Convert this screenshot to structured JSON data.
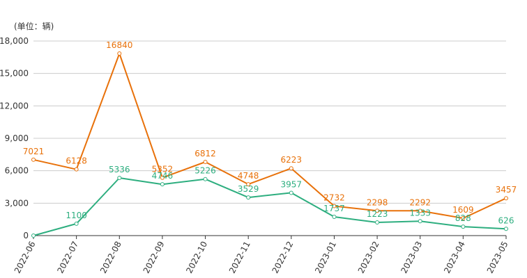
{
  "unit_label": "(单位：辆)",
  "chart_data": {
    "type": "line",
    "categories": [
      "2022-06",
      "2022-07",
      "2022-08",
      "2022-09",
      "2022-10",
      "2022-11",
      "2022-12",
      "2023-01",
      "2023-02",
      "2023-03",
      "2023-04",
      "2023-05"
    ],
    "ylim": [
      0,
      18000
    ],
    "yticks": [
      0,
      3000,
      6000,
      9000,
      12000,
      15000,
      18000
    ],
    "ytick_labels": [
      "0",
      "3,000",
      "6,000",
      "9,000",
      "12,000",
      "15,000",
      "18,000"
    ],
    "grid": true,
    "legend": "none",
    "series": [
      {
        "color": "#E8710A",
        "values": [
          7021,
          6128,
          16840,
          5352,
          6812,
          4748,
          6223,
          2732,
          2298,
          2292,
          1609,
          3457
        ],
        "labels": [
          "7021",
          "6128",
          "16840",
          "5352",
          "6812",
          "4748",
          "6223",
          "2732",
          "2298",
          "2292",
          "1609",
          "3457"
        ]
      },
      {
        "color": "#2DAE7F",
        "values": [
          0,
          1100,
          5336,
          4746,
          5226,
          3529,
          3957,
          1737,
          1223,
          1333,
          828,
          626
        ],
        "labels": [
          "",
          "1100",
          "5336",
          "4746",
          "5226",
          "3529",
          "3957",
          "1737",
          "1223",
          "1333",
          "828",
          "626"
        ]
      }
    ]
  }
}
